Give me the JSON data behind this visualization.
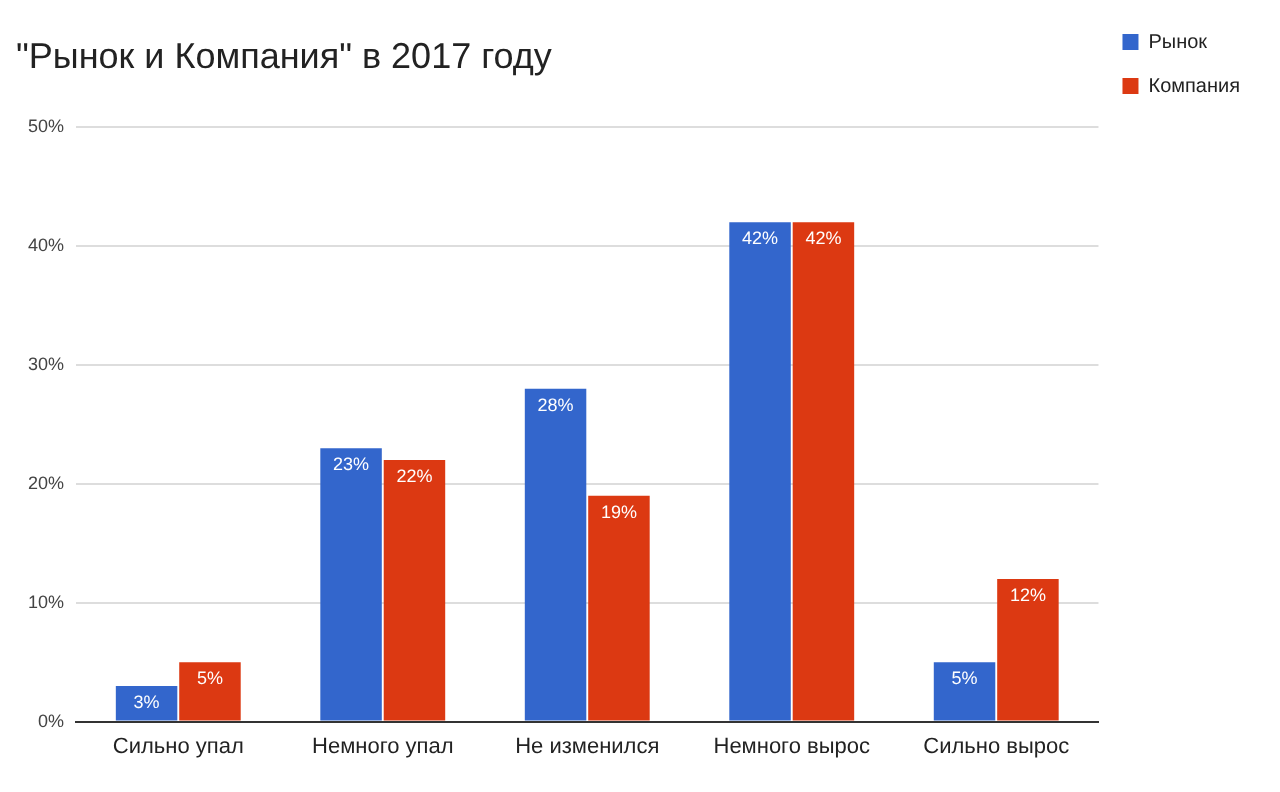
{
  "chart_data": {
    "type": "bar",
    "title": "\"Рынок и Компания\" в 2017 году",
    "categories": [
      "Сильно упал",
      "Немного упал",
      "Не изменился",
      "Немного вырос",
      "Сильно вырос"
    ],
    "series": [
      {
        "name": "Рынок",
        "color": "#3366cc",
        "values": [
          3,
          23,
          28,
          42,
          5
        ],
        "value_labels": [
          "3%",
          "23%",
          "28%",
          "42%",
          "5%"
        ]
      },
      {
        "name": "Компания",
        "color": "#dc3912",
        "values": [
          5,
          22,
          19,
          42,
          12
        ],
        "value_labels": [
          "5%",
          "22%",
          "19%",
          "42%",
          "12%"
        ]
      }
    ],
    "ylim": [
      0,
      50
    ],
    "yticks": [
      {
        "value": 0,
        "label": "0%"
      },
      {
        "value": 10,
        "label": "10%"
      },
      {
        "value": 20,
        "label": "20%"
      },
      {
        "value": 30,
        "label": "30%"
      },
      {
        "value": 40,
        "label": "40%"
      },
      {
        "value": 50,
        "label": "50%"
      }
    ],
    "grid": "y",
    "legend": "top right"
  }
}
